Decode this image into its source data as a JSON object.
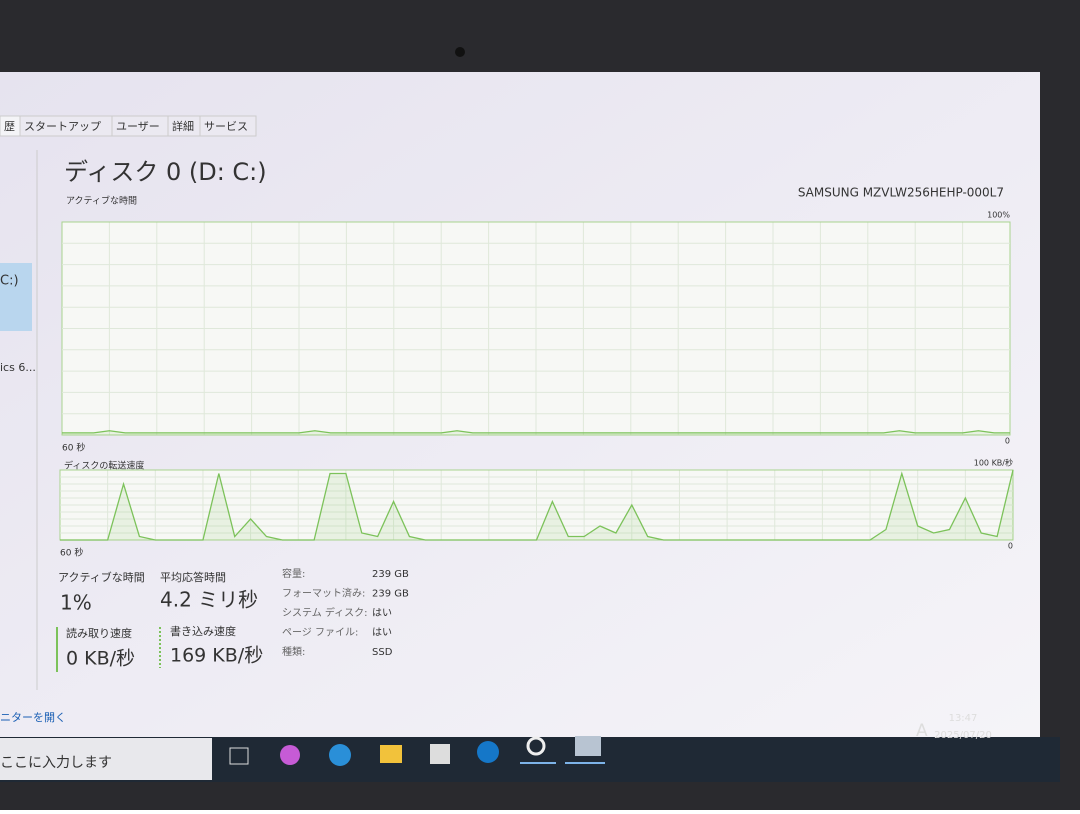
{
  "window": {
    "tabs": [
      "歴",
      "スタートアップ",
      "ユーザー",
      "詳細",
      "サービス"
    ],
    "sidebar": [
      "C:)",
      "ics 6..."
    ],
    "footer_link": "ニターを開く"
  },
  "disk": {
    "title": "ディスク 0 (D: C:)",
    "model": "SAMSUNG MZVLW256HEHP-000L7"
  },
  "chart_data": [
    {
      "type": "line",
      "label": "アクティブな時間",
      "xlabel": "60 秒",
      "color": "#7cc25a",
      "ylim": [
        0,
        100
      ],
      "yticks": [
        0,
        {
          "value": 100,
          "label": "100%"
        }
      ],
      "values": [
        1,
        1,
        1,
        2,
        1,
        1,
        1,
        1,
        1,
        1,
        1,
        1,
        1,
        1,
        1,
        1,
        2,
        1,
        1,
        1,
        1,
        1,
        1,
        1,
        1,
        2,
        1,
        1,
        1,
        1,
        1,
        1,
        1,
        1,
        1,
        1,
        1,
        1,
        1,
        1,
        1,
        1,
        1,
        1,
        1,
        1,
        1,
        1,
        1,
        1,
        1,
        1,
        1,
        2,
        1,
        1,
        1,
        1,
        2,
        1,
        1
      ]
    },
    {
      "type": "line",
      "label": "ディスクの転送速度",
      "xlabel": "60 秒",
      "color": "#7cc25a",
      "ylim": [
        0,
        100
      ],
      "yticks": [
        0,
        {
          "value": 100,
          "label": "100 KB/秒"
        }
      ],
      "values": [
        0,
        0,
        0,
        0,
        80,
        5,
        0,
        0,
        0,
        0,
        95,
        5,
        30,
        5,
        0,
        0,
        0,
        95,
        95,
        10,
        5,
        55,
        5,
        0,
        0,
        0,
        0,
        0,
        0,
        0,
        0,
        55,
        5,
        5,
        20,
        10,
        50,
        5,
        0,
        0,
        0,
        0,
        0,
        0,
        0,
        0,
        0,
        0,
        0,
        0,
        0,
        0,
        15,
        95,
        20,
        10,
        15,
        60,
        10,
        5,
        100
      ]
    }
  ],
  "stats": [
    {
      "label": "アクティブな時間",
      "value": "1%"
    },
    {
      "label": "平均応答時間",
      "value": "4.2 ミリ秒"
    },
    {
      "label": "読み取り速度",
      "value": "0 KB/秒"
    },
    {
      "label": "書き込み速度",
      "value": "169 KB/秒"
    }
  ],
  "properties": [
    {
      "label": "容量:",
      "value": "239 GB"
    },
    {
      "label": "フォーマット済み:",
      "value": "239 GB"
    },
    {
      "label": "システム ディスク:",
      "value": "はい"
    },
    {
      "label": "ページ ファイル:",
      "value": "はい"
    },
    {
      "label": "種類:",
      "value": "SSD"
    }
  ],
  "taskbar": {
    "search": "ここに入力します",
    "ime": "A",
    "time": "13:47",
    "date": "2025/07/20"
  }
}
